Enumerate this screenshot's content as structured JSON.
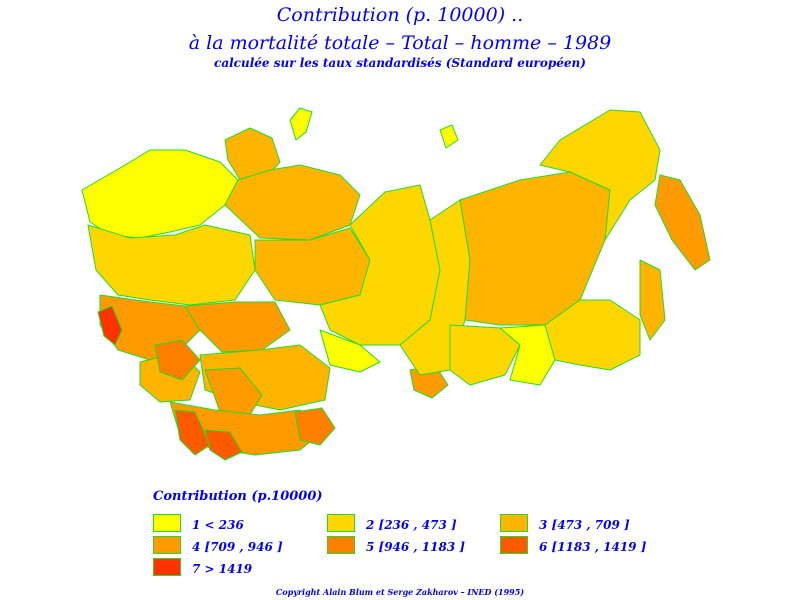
{
  "title_line1": "Contribution  (p. 10000) ..",
  "title_line2": "à  la  mortalité  totale  –  Total  –  homme  –  1989",
  "subtitle": "calculée sur les taux standardisés (Standard européen)",
  "legend": {
    "title": "Contribution  (p.10000)",
    "classes": [
      {
        "label": "1  <  236",
        "color": "#ffff00"
      },
      {
        "label": "2  [236  ,  473  ]",
        "color": "#ffd700"
      },
      {
        "label": "3  [473  ,  709  ]",
        "color": "#ffb400"
      },
      {
        "label": "4  [709  ,  946  ]",
        "color": "#ff9a00"
      },
      {
        "label": "5  [946  ,  1183  ]",
        "color": "#ff7f00"
      },
      {
        "label": "6  [1183  ,  1419  ]",
        "color": "#ff5a00"
      },
      {
        "label": "7  >  1419",
        "color": "#ff3200"
      }
    ]
  },
  "border_color": "#22dd22",
  "copyright": "Copyright  Alain  Blum  et  Serge  Zakharov  –  INED  (1995)"
}
